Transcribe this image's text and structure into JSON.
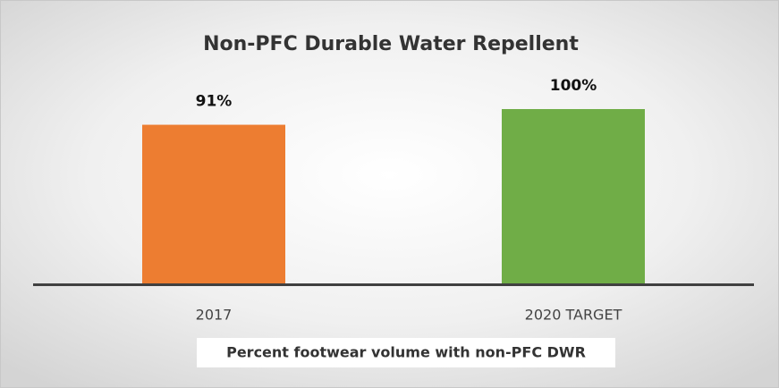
{
  "chart_data": {
    "type": "bar",
    "title": "Non-PFC Durable Water Repellent",
    "x_label": "Percent footwear volume with non-PFC DWR",
    "categories": [
      "2017",
      "2020 TARGET"
    ],
    "values": [
      91,
      100
    ],
    "value_labels": [
      "91%",
      "100%"
    ],
    "colors": [
      "#ed7d31",
      "#70ad47"
    ]
  }
}
